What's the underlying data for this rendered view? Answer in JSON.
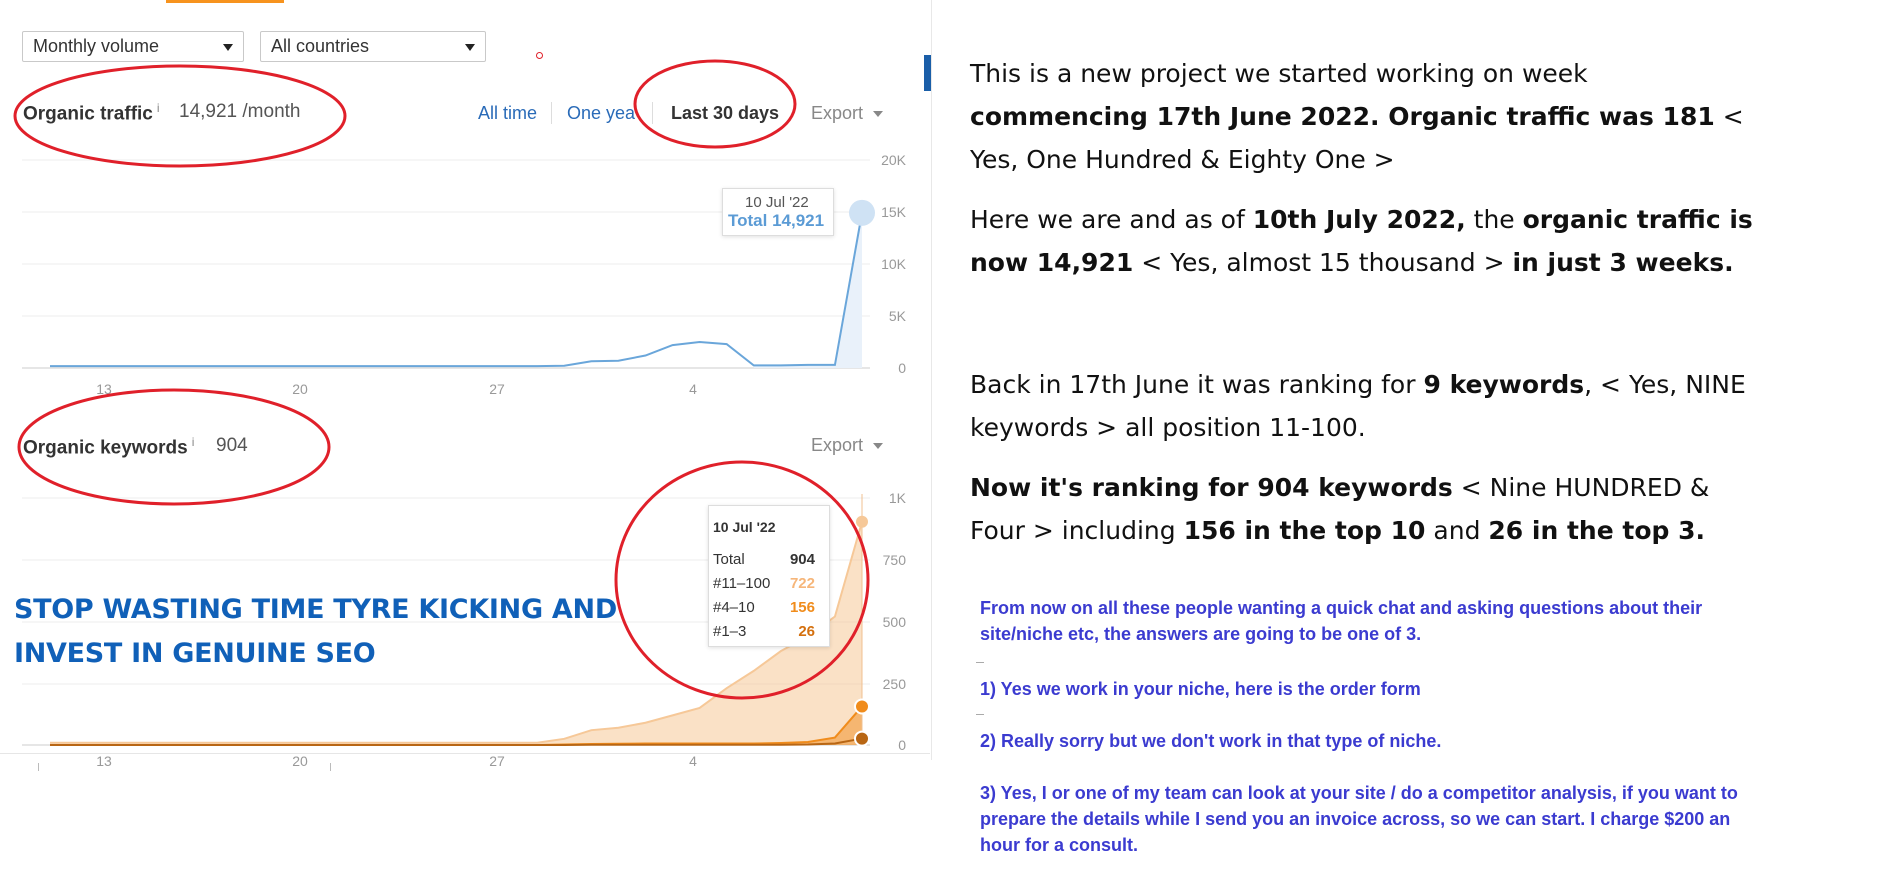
{
  "filters": {
    "volume_select": "Monthly volume",
    "country_select": "All countries"
  },
  "traffic": {
    "title": "Organic traffic",
    "info": "i",
    "value": "14,921 /month",
    "range_all": "All time",
    "range_year": "One year",
    "range_30": "Last 30 days",
    "export": "Export",
    "tooltip_date": "10 Jul '22",
    "tooltip_total": "Total 14,921",
    "y_ticks": [
      "20K",
      "15K",
      "10K",
      "5K",
      "0"
    ],
    "x_ticks": [
      "13",
      "20",
      "27",
      "4"
    ]
  },
  "keywords": {
    "title": "Organic keywords",
    "info": "i",
    "value": "904",
    "export": "Export",
    "tooltip_date": "10 Jul '22",
    "tooltip_rows": [
      {
        "label": "Total",
        "value": "904",
        "color": "#333333"
      },
      {
        "label": "#11–100",
        "value": "722",
        "color": "#f6b67a"
      },
      {
        "label": "#4–10",
        "value": "156",
        "color": "#f08c1c"
      },
      {
        "label": "#1–3",
        "value": "26",
        "color": "#d4700e"
      }
    ],
    "y_ticks": [
      "1K",
      "750",
      "500",
      "250",
      "0"
    ],
    "x_ticks": [
      "13",
      "20",
      "27",
      "4"
    ]
  },
  "colors": {
    "traffic_line": "#6aa6da",
    "traffic_fill": "#e9f1fa",
    "kw_top100": "#f6c898",
    "kw_top10": "#f08c1c",
    "kw_top3": "#b86614",
    "annotation_red": "#e0202a",
    "accent_orange": "#f7931e"
  },
  "promo": {
    "line1": "STOP WASTING TIME TYRE KICKING AND",
    "line2": "INVEST IN GENUINE SEO"
  },
  "right": {
    "p1_a": "This is a new project we started working on week ",
    "p1_b": "commencing 17th June 2022. Organic traffic was 181",
    "p1_c": " < Yes, One Hundred & Eighty One >",
    "p2_a": "Here we are and as of ",
    "p2_b": "10th July 2022,",
    "p2_c": " the ",
    "p2_d": "organic traffic is now 14,921",
    "p2_e": " < Yes, almost 15 thousand > ",
    "p2_f": "in just 3 weeks.",
    "p3_a": "Back in 17th June it was ranking for ",
    "p3_b": "9 keywords",
    "p3_c": ", < Yes, NINE keywords > all position 11-100.",
    "p4_a": "Now it's ranking for 904 keywords",
    "p4_b": " < Nine HUNDRED & Four > including ",
    "p4_c": "156 in the top 10",
    "p4_d": " and ",
    "p4_e": "26 in the top 3.",
    "q1": "From now on all these people wanting a quick chat and asking questions about their site/niche etc, the answers are going to be one of 3.",
    "q2": "1) Yes we work in your niche, here is the order form",
    "q3": "2) Really sorry but we don't work in that type of niche.",
    "q4": "3) Yes, I or one of my team can look at your site / do a competitor analysis, if you want to prepare the details while I send you an invoice across, so we can start. I charge $200 an hour for a consult."
  }
}
